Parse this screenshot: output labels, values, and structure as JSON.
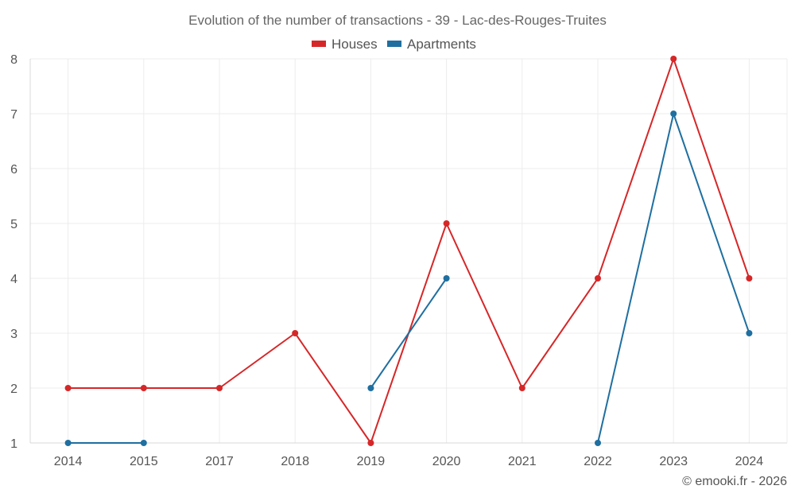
{
  "chart_data": {
    "type": "line",
    "title": "Evolution of the number of transactions - 39 - Lac-des-Rouges-Truites",
    "categories": [
      "2014",
      "2015",
      "2017",
      "2018",
      "2019",
      "2020",
      "2021",
      "2022",
      "2023",
      "2024"
    ],
    "series": [
      {
        "name": "Houses",
        "color": "#d62728",
        "values": [
          2,
          2,
          2,
          3,
          1,
          5,
          2,
          4,
          8,
          4
        ]
      },
      {
        "name": "Apartments",
        "color": "#1f6fa0",
        "values": [
          1,
          1,
          null,
          null,
          2,
          4,
          null,
          1,
          7,
          3
        ]
      }
    ],
    "ylim": [
      1,
      8
    ],
    "yticks": [
      1,
      2,
      3,
      4,
      5,
      6,
      7,
      8
    ],
    "xlabel": "",
    "ylabel": "",
    "grid": true,
    "legend_position": "top-center"
  },
  "credit": "© emooki.fr - 2026"
}
